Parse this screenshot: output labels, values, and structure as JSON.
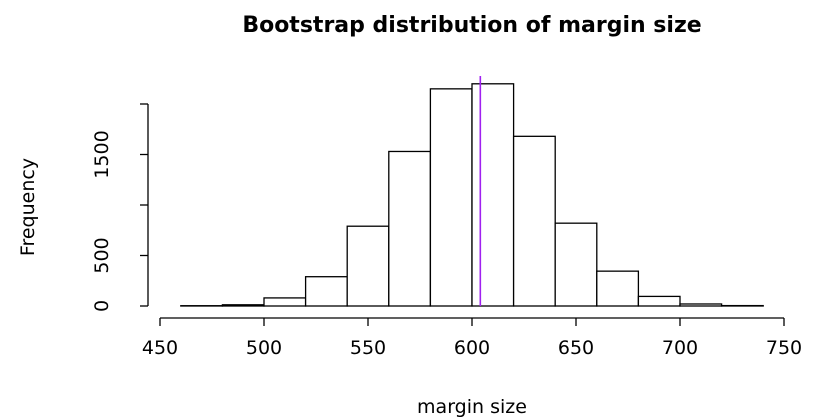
{
  "chart_data": {
    "type": "bar",
    "title": "Bootstrap distribution of margin size",
    "xlabel": "margin size",
    "ylabel": "Frequency",
    "xlim": [
      450,
      750
    ],
    "ylim": [
      0,
      2000
    ],
    "x_ticks": [
      450,
      500,
      550,
      600,
      650,
      700,
      750
    ],
    "y_ticks": [
      0,
      500,
      1000,
      1500,
      2000
    ],
    "y_tick_labels": [
      "0",
      "500",
      "",
      "1500",
      ""
    ],
    "bins": [
      {
        "from": 460,
        "to": 480,
        "count": 3
      },
      {
        "from": 480,
        "to": 500,
        "count": 12
      },
      {
        "from": 500,
        "to": 520,
        "count": 80
      },
      {
        "from": 520,
        "to": 540,
        "count": 290
      },
      {
        "from": 540,
        "to": 560,
        "count": 790
      },
      {
        "from": 560,
        "to": 580,
        "count": 1530
      },
      {
        "from": 580,
        "to": 600,
        "count": 2150
      },
      {
        "from": 600,
        "to": 620,
        "count": 2200
      },
      {
        "from": 620,
        "to": 640,
        "count": 1680
      },
      {
        "from": 640,
        "to": 660,
        "count": 820
      },
      {
        "from": 660,
        "to": 680,
        "count": 345
      },
      {
        "from": 680,
        "to": 700,
        "count": 95
      },
      {
        "from": 700,
        "to": 720,
        "count": 20
      },
      {
        "from": 720,
        "to": 740,
        "count": 4
      }
    ],
    "reference_line": {
      "x": 604,
      "color": "#a020f0"
    },
    "bar_fill": "#ffffff",
    "bar_stroke": "#000000",
    "grid": false
  }
}
